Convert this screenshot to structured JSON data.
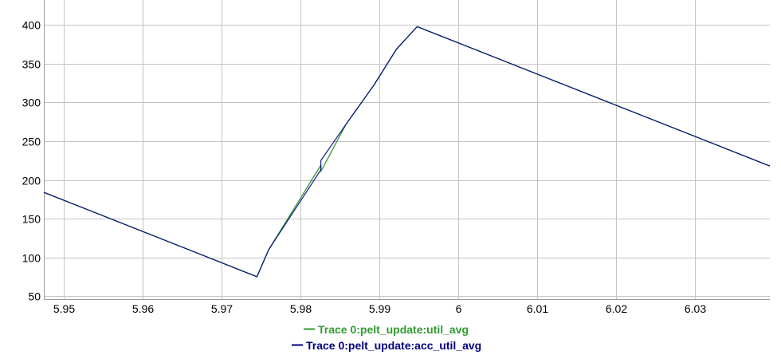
{
  "chart_data": {
    "type": "line",
    "title": "",
    "xlabel": "",
    "ylabel": "",
    "xlim": [
      5.9475,
      6.0395
    ],
    "ylim": [
      46,
      420
    ],
    "grid": true,
    "legend_position": "bottom-center",
    "x_ticks": [
      {
        "value": 5.95,
        "label": "5.95"
      },
      {
        "value": 5.96,
        "label": "5.96"
      },
      {
        "value": 5.97,
        "label": "5.97"
      },
      {
        "value": 5.98,
        "label": "5.98"
      },
      {
        "value": 5.99,
        "label": "5.99"
      },
      {
        "value": 6.0,
        "label": "6"
      },
      {
        "value": 6.01,
        "label": "6.01"
      },
      {
        "value": 6.02,
        "label": "6.02"
      },
      {
        "value": 6.03,
        "label": "6.03"
      }
    ],
    "y_ticks": [
      {
        "value": 50,
        "label": "50"
      },
      {
        "value": 100,
        "label": "100"
      },
      {
        "value": 150,
        "label": "150"
      },
      {
        "value": 200,
        "label": "200"
      },
      {
        "value": 250,
        "label": "250"
      },
      {
        "value": 300,
        "label": "300"
      },
      {
        "value": 350,
        "label": "350"
      },
      {
        "value": 400,
        "label": "400"
      }
    ],
    "series": [
      {
        "name": "Trace 0:pelt_update:util_avg",
        "color": "#339933",
        "points": [
          [
            5.9475,
            184
          ],
          [
            5.9745,
            75
          ],
          [
            5.976,
            110
          ],
          [
            5.9826,
            219
          ],
          [
            5.9826,
            211
          ],
          [
            5.9858,
            272
          ],
          [
            5.9893,
            322
          ],
          [
            5.9922,
            369
          ],
          [
            5.9948,
            398
          ],
          [
            6.0395,
            218
          ]
        ]
      },
      {
        "name": "Trace 0:pelt_update:acc_util_avg",
        "color": "#000080",
        "points": [
          [
            5.9475,
            184
          ],
          [
            5.9745,
            75
          ],
          [
            5.976,
            110
          ],
          [
            5.9826,
            213
          ],
          [
            5.9826,
            225
          ],
          [
            5.9858,
            272
          ],
          [
            5.9893,
            322
          ],
          [
            5.9922,
            369
          ],
          [
            5.9948,
            398
          ],
          [
            6.0395,
            218
          ]
        ]
      }
    ]
  }
}
